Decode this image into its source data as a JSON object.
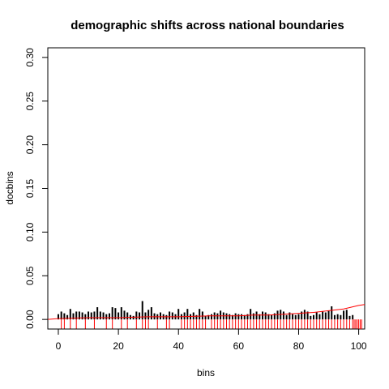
{
  "chart_data": {
    "type": "bar",
    "title": "demographic shifts across national boundaries",
    "xlabel": "bins",
    "ylabel": "docbins",
    "xlim": [
      -3.5,
      102
    ],
    "ylim": [
      -0.011,
      0.311
    ],
    "x_ticks": [
      0,
      20,
      40,
      60,
      80,
      100
    ],
    "y_ticks": [
      0.0,
      0.05,
      0.1,
      0.15,
      0.2,
      0.25,
      0.3
    ],
    "x_tick_labels": [
      "0",
      "20",
      "40",
      "60",
      "80",
      "100"
    ],
    "y_tick_labels": [
      "0.00",
      "0.05",
      "0.10",
      "0.15",
      "0.20",
      "0.25",
      "0.30"
    ],
    "grid": false,
    "legend": "none",
    "colors": {
      "bars": "#000000",
      "rug": "#ff0000",
      "curve": "#ff0000"
    },
    "bars": {
      "x": [
        0,
        1,
        2,
        3,
        4,
        5,
        6,
        7,
        8,
        9,
        10,
        11,
        12,
        13,
        14,
        15,
        16,
        17,
        18,
        19,
        20,
        21,
        22,
        23,
        24,
        25,
        26,
        27,
        28,
        29,
        30,
        31,
        32,
        33,
        34,
        35,
        36,
        37,
        38,
        39,
        40,
        41,
        42,
        43,
        44,
        45,
        46,
        47,
        48,
        49,
        50,
        51,
        52,
        53,
        54,
        55,
        56,
        57,
        58,
        59,
        60,
        61,
        62,
        63,
        64,
        65,
        66,
        67,
        68,
        69,
        70,
        71,
        72,
        73,
        74,
        75,
        76,
        77,
        78,
        79,
        80,
        81,
        82,
        83,
        84,
        85,
        86,
        87,
        88,
        89,
        90,
        91,
        92,
        93,
        94,
        95,
        96,
        97,
        98
      ],
      "values": [
        0.006,
        0.009,
        0.007,
        0.005,
        0.012,
        0.007,
        0.009,
        0.009,
        0.008,
        0.006,
        0.009,
        0.008,
        0.009,
        0.014,
        0.009,
        0.008,
        0.006,
        0.007,
        0.014,
        0.013,
        0.008,
        0.014,
        0.01,
        0.008,
        0.005,
        0.004,
        0.009,
        0.008,
        0.021,
        0.008,
        0.011,
        0.014,
        0.007,
        0.006,
        0.008,
        0.006,
        0.005,
        0.009,
        0.008,
        0.006,
        0.012,
        0.006,
        0.008,
        0.012,
        0.006,
        0.008,
        0.005,
        0.012,
        0.009,
        0.004,
        0.005,
        0.006,
        0.008,
        0.007,
        0.01,
        0.008,
        0.007,
        0.006,
        0.005,
        0.007,
        0.006,
        0.006,
        0.005,
        0.006,
        0.012,
        0.007,
        0.009,
        0.006,
        0.009,
        0.008,
        0.006,
        0.005,
        0.007,
        0.01,
        0.011,
        0.009,
        0.005,
        0.008,
        0.006,
        0.005,
        0.006,
        0.009,
        0.011,
        0.009,
        0.004,
        0.005,
        0.008,
        0.006,
        0.009,
        0.008,
        0.01,
        0.015,
        0.005,
        0.006,
        0.005,
        0.01,
        0.011,
        0.004,
        0.005
      ]
    },
    "rug_x": [
      1,
      2,
      4,
      6,
      9,
      12,
      16,
      18,
      21,
      23,
      26,
      28,
      29,
      30,
      33,
      36,
      37,
      41,
      42,
      43,
      44,
      45,
      46,
      47,
      48,
      49,
      51,
      52,
      53,
      54,
      55,
      56,
      57,
      58,
      59,
      60,
      61,
      62,
      63,
      64,
      65,
      66,
      67,
      68,
      69,
      70,
      71,
      72,
      73,
      74,
      75,
      76,
      77,
      78,
      79,
      80,
      81,
      82,
      83,
      84,
      85,
      86,
      87,
      88,
      89,
      90,
      91,
      92,
      93,
      94,
      95,
      96,
      97,
      98,
      98.5,
      99,
      99.5,
      100,
      100.5,
      101
    ],
    "smooth_curve": {
      "x": [
        -3.5,
        0,
        10,
        20,
        30,
        40,
        50,
        55,
        60,
        65,
        70,
        75,
        80,
        85,
        90,
        95,
        100,
        102
      ],
      "y": [
        0.0,
        0.001,
        0.002,
        0.002,
        0.003,
        0.003,
        0.004,
        0.004,
        0.004,
        0.005,
        0.005,
        0.006,
        0.007,
        0.008,
        0.01,
        0.012,
        0.016,
        0.017
      ]
    }
  }
}
